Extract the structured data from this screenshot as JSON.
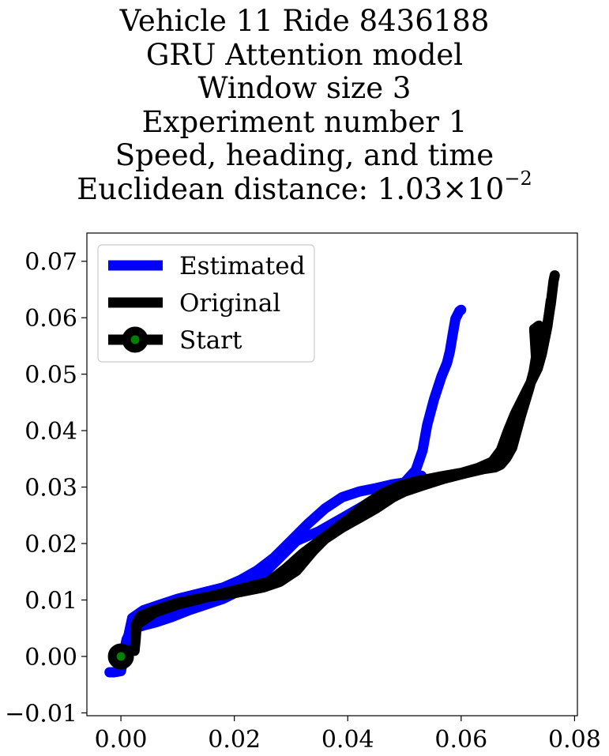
{
  "chart_data": {
    "type": "line",
    "title_lines": [
      "Vehicle 11 Ride 8436188",
      "GRU Attention model",
      "Window size 3",
      "Experiment number 1",
      "Speed, heading, and time"
    ],
    "title_distance": {
      "prefix": "Euclidean distance: ",
      "mantissa": "1.03",
      "times": "×",
      "base": "10",
      "exponent": "−2"
    },
    "xlabel": "",
    "ylabel": "",
    "xlim": [
      -0.006,
      0.0805
    ],
    "ylim": [
      -0.0105,
      0.075
    ],
    "xticks": [
      0.0,
      0.02,
      0.04,
      0.06,
      0.08
    ],
    "xtick_labels": [
      "0.00",
      "0.02",
      "0.04",
      "0.06",
      "0.08"
    ],
    "yticks": [
      -0.01,
      0.0,
      0.01,
      0.02,
      0.03,
      0.04,
      0.05,
      0.06,
      0.07
    ],
    "ytick_labels": [
      "−0.01",
      "0.00",
      "0.01",
      "0.02",
      "0.03",
      "0.04",
      "0.05",
      "0.06",
      "0.07"
    ],
    "grid": false,
    "legend_position": "top-left",
    "series": [
      {
        "name": "Estimated",
        "color": "#0000ff",
        "x": [
          -0.002,
          -0.0012,
          0.0,
          0.0005,
          0.001,
          0.0015,
          0.0025,
          0.004,
          0.006,
          0.009,
          0.012,
          0.015,
          0.018,
          0.02,
          0.022,
          0.025,
          0.028,
          0.031,
          0.035,
          0.039,
          0.043,
          0.047,
          0.05,
          0.052,
          0.0532,
          0.054,
          0.0552,
          0.0565,
          0.0575,
          0.058,
          0.0585,
          0.059,
          0.0597,
          0.06
        ],
        "y": [
          -0.0028,
          -0.0028,
          -0.0026,
          0.0005,
          0.003,
          0.004,
          0.005,
          0.0055,
          0.006,
          0.007,
          0.0082,
          0.0092,
          0.0102,
          0.0112,
          0.0125,
          0.0145,
          0.0175,
          0.0205,
          0.0222,
          0.0245,
          0.0268,
          0.0292,
          0.0308,
          0.033,
          0.0365,
          0.041,
          0.0455,
          0.0495,
          0.052,
          0.054,
          0.057,
          0.0598,
          0.0612,
          0.0614
        ]
      },
      {
        "name": "Estimated",
        "color": "#0000ff",
        "x": [
          0.0,
          0.002,
          0.004,
          0.007,
          0.01,
          0.014,
          0.018,
          0.021,
          0.024,
          0.027,
          0.03,
          0.033,
          0.036,
          0.039,
          0.042,
          0.045,
          0.048,
          0.05,
          0.052,
          0.053
        ],
        "y": [
          -0.0025,
          0.0068,
          0.0082,
          0.0092,
          0.0102,
          0.0112,
          0.0122,
          0.0135,
          0.0152,
          0.0175,
          0.0205,
          0.0235,
          0.0262,
          0.0282,
          0.0292,
          0.0298,
          0.0305,
          0.0308,
          0.0315,
          0.032
        ]
      },
      {
        "name": "Original",
        "color": "#000000",
        "x": [
          0.0,
          0.0012,
          0.0024,
          0.0026,
          0.0028,
          0.0035,
          0.006,
          0.01,
          0.015,
          0.02,
          0.025,
          0.028,
          0.031,
          0.034,
          0.036,
          0.039,
          0.042,
          0.045,
          0.048,
          0.05,
          0.053,
          0.057,
          0.061,
          0.064,
          0.066,
          0.067,
          0.068,
          0.069,
          0.0705,
          0.072,
          0.0728,
          0.0732,
          0.0729,
          0.0737,
          0.0742,
          0.075,
          0.0758,
          0.0763,
          0.0765
        ],
        "y": [
          0.0,
          0.001,
          0.001,
          0.003,
          0.006,
          0.0072,
          0.0082,
          0.0095,
          0.0105,
          0.0112,
          0.0122,
          0.0132,
          0.0152,
          0.0188,
          0.0208,
          0.0228,
          0.0245,
          0.0262,
          0.0282,
          0.0292,
          0.0302,
          0.0315,
          0.0325,
          0.0332,
          0.0335,
          0.034,
          0.0352,
          0.037,
          0.0425,
          0.0475,
          0.0505,
          0.053,
          0.058,
          0.0586,
          0.0545,
          0.0575,
          0.0625,
          0.0665,
          0.0675
        ]
      },
      {
        "name": "Original",
        "color": "#000000",
        "x": [
          0.0026,
          0.006,
          0.01,
          0.014,
          0.018,
          0.022,
          0.026,
          0.029,
          0.032,
          0.036,
          0.04,
          0.043,
          0.046,
          0.049,
          0.052,
          0.056,
          0.06,
          0.063,
          0.0655,
          0.067,
          0.0682,
          0.0695,
          0.071,
          0.0725,
          0.0735,
          0.0742,
          0.0752,
          0.0758
        ],
        "y": [
          0.0055,
          0.0078,
          0.0092,
          0.0102,
          0.0112,
          0.0122,
          0.0132,
          0.0155,
          0.0182,
          0.0212,
          0.0242,
          0.0268,
          0.0288,
          0.0302,
          0.031,
          0.0318,
          0.0325,
          0.0334,
          0.0345,
          0.0365,
          0.0398,
          0.043,
          0.046,
          0.049,
          0.051,
          0.0535,
          0.0585,
          0.063
        ]
      }
    ],
    "start": {
      "name": "Start",
      "x": 0.0,
      "y": 0.0,
      "edge_color": "#000000",
      "face_color": "#008000"
    },
    "legend": [
      {
        "label": "Estimated",
        "color": "#0000ff",
        "marker": false
      },
      {
        "label": "Original",
        "color": "#000000",
        "marker": false
      },
      {
        "label": "Start",
        "color": "#000000",
        "marker": true,
        "marker_face": "#008000"
      }
    ]
  }
}
